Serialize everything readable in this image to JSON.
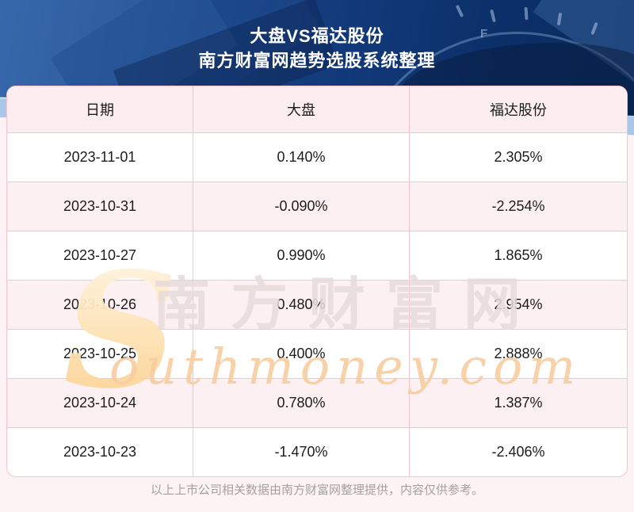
{
  "header": {
    "title": "大盘VS福达股份",
    "subtitle": "南方财富网趋势选股系统整理",
    "bg_color": "#12397a",
    "stripe_color": "#aac7e9",
    "gauge_letter": "F"
  },
  "table": {
    "border_color": "#f9c3cd",
    "header_bg": "#fceef0",
    "alt_row_bg": "#fdf0f2",
    "columns": [
      "日期",
      "大盘",
      "福达股份"
    ],
    "rows": [
      [
        "2023-11-01",
        "0.140%",
        "2.305%"
      ],
      [
        "2023-10-31",
        "-0.090%",
        "-2.254%"
      ],
      [
        "2023-10-27",
        "0.990%",
        "1.865%"
      ],
      [
        "2023-10-26",
        "0.480%",
        "2.954%"
      ],
      [
        "2023-10-25",
        "0.400%",
        "2.888%"
      ],
      [
        "2023-10-24",
        "0.780%",
        "1.387%"
      ],
      [
        "2023-10-23",
        "-1.470%",
        "-2.406%"
      ]
    ]
  },
  "watermark": {
    "s_letter": "S",
    "cn_text": "南方财富网",
    "en_text": "outhmoney.com",
    "cn_color": "#e7dbdb",
    "en_color": "#f8cda0"
  },
  "footer": {
    "note": "以上上市公司相关数据由南方财富网整理提供，内容仅供参考。"
  },
  "chart_data": {
    "type": "table",
    "title": "大盘VS福达股份",
    "subtitle": "南方财富网趋势选股系统整理",
    "columns": [
      "日期",
      "大盘",
      "福达股份"
    ],
    "rows": [
      [
        "2023-11-01",
        "0.140%",
        "2.305%"
      ],
      [
        "2023-10-31",
        "-0.090%",
        "-2.254%"
      ],
      [
        "2023-10-27",
        "0.990%",
        "1.865%"
      ],
      [
        "2023-10-26",
        "0.480%",
        "2.954%"
      ],
      [
        "2023-10-25",
        "0.400%",
        "2.888%"
      ],
      [
        "2023-10-24",
        "0.780%",
        "1.387%"
      ],
      [
        "2023-10-23",
        "-1.470%",
        "-2.406%"
      ]
    ],
    "source_note": "以上上市公司相关数据由南方财富网整理提供，内容仅供参考。"
  }
}
